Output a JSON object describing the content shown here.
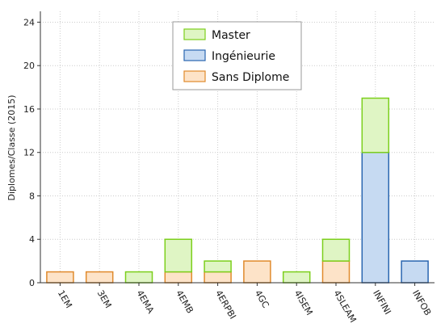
{
  "chart_data": {
    "type": "bar",
    "stacked": true,
    "categories": [
      "1EM",
      "3EM",
      "4EMA",
      "4EMB",
      "4ERPBI",
      "4GC",
      "4ISEM",
      "4SLEAM",
      "INFINI",
      "INFOB"
    ],
    "series": [
      {
        "name": "Sans Diplome",
        "values": [
          1,
          1,
          0,
          1,
          1,
          2,
          0,
          2,
          0,
          0
        ],
        "fill": "#fde3c8",
        "stroke": "#e08a2c"
      },
      {
        "name": "Ingénieurie",
        "values": [
          0,
          0,
          0,
          0,
          0,
          0,
          0,
          0,
          12,
          2
        ],
        "fill": "#c6daf2",
        "stroke": "#2a66b0"
      },
      {
        "name": "Master",
        "values": [
          0,
          0,
          1,
          3,
          1,
          0,
          1,
          2,
          5,
          0
        ],
        "fill": "#dff5c4",
        "stroke": "#7ccf1c"
      }
    ],
    "legend_order": [
      "Master",
      "Ingénieurie",
      "Sans Diplome"
    ],
    "legend_position": "top-center",
    "ylabel": "Diplomes/Classe (2015)",
    "xlabel": "",
    "ylim": [
      0,
      25
    ],
    "yticks": [
      0,
      4,
      8,
      12,
      16,
      20,
      24
    ],
    "grid": true,
    "grid_color": "#cccccc"
  }
}
